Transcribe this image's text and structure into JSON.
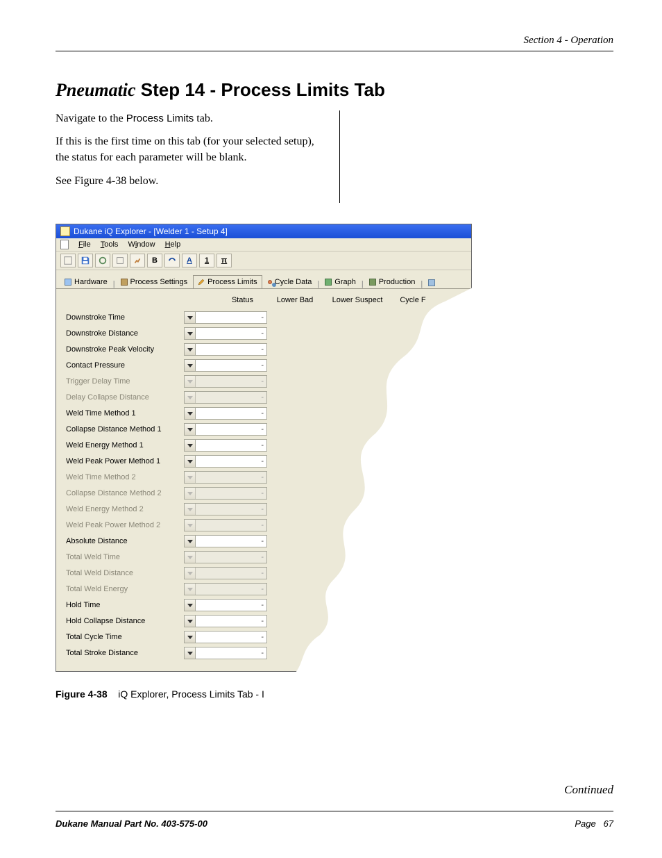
{
  "header": {
    "section": "Section 4 - Operation"
  },
  "title": {
    "prefix": "Pneumatic",
    "rest": " Step 14 - Process Limits Tab"
  },
  "intro": {
    "nav_pre": "Navigate to the ",
    "nav_tab": "Process Limits",
    "nav_post": " tab.",
    "p2": "If this is the first time on this tab (for your selected setup), the status for each parameter will be blank.",
    "p3": "See Figure 4-38 below."
  },
  "window": {
    "title": "Dukane iQ Explorer - [Welder 1 - Setup 4]",
    "menu": {
      "file": "File",
      "tools": "Tools",
      "window": "Window",
      "help": "Help"
    },
    "tabs": {
      "hardware": "Hardware",
      "process_settings": "Process Settings",
      "process_limits": "Process Limits",
      "cycle_data": "Cycle Data",
      "graph": "Graph",
      "production": "Production"
    },
    "columns": {
      "status": "Status",
      "lower_bad": "Lower Bad",
      "lower_suspect": "Lower Suspect",
      "cycle": "Cycle F"
    },
    "rows": [
      {
        "label": "Downstroke Time",
        "enabled": true
      },
      {
        "label": "Downstroke Distance",
        "enabled": true
      },
      {
        "label": "Downstroke Peak Velocity",
        "enabled": true
      },
      {
        "label": "Contact Pressure",
        "enabled": true
      },
      {
        "label": "Trigger Delay Time",
        "enabled": false
      },
      {
        "label": "Delay Collapse Distance",
        "enabled": false
      },
      {
        "label": "Weld Time Method 1",
        "enabled": true
      },
      {
        "label": "Collapse Distance Method 1",
        "enabled": true
      },
      {
        "label": "Weld Energy Method 1",
        "enabled": true
      },
      {
        "label": "Weld Peak Power Method 1",
        "enabled": true
      },
      {
        "label": "Weld Time Method 2",
        "enabled": false
      },
      {
        "label": "Collapse Distance Method 2",
        "enabled": false
      },
      {
        "label": "Weld Energy Method 2",
        "enabled": false
      },
      {
        "label": "Weld Peak Power Method 2",
        "enabled": false
      },
      {
        "label": "Absolute Distance",
        "enabled": true
      },
      {
        "label": "Total Weld Time",
        "enabled": false
      },
      {
        "label": "Total Weld Distance",
        "enabled": false
      },
      {
        "label": "Total Weld Energy",
        "enabled": false
      },
      {
        "label": "Hold Time",
        "enabled": true
      },
      {
        "label": "Hold Collapse Distance",
        "enabled": true
      },
      {
        "label": "Total Cycle Time",
        "enabled": true
      },
      {
        "label": "Total Stroke Distance",
        "enabled": true
      }
    ],
    "status_placeholder": "-",
    "colors": {
      "titlebar_start": "#3a6ef0",
      "titlebar_end": "#1b4fd6",
      "panel_bg": "#ece9d8",
      "cell_bg": "#ffffff",
      "cell_border": "#a8a89a",
      "disabled_text": "#8a8778"
    }
  },
  "figure": {
    "num": "Figure 4-38",
    "caption": "iQ Explorer, Process Limits Tab - I"
  },
  "continued": "Continued",
  "footer": {
    "left": "Dukane Manual Part No. 403-575-00",
    "right_label": "Page",
    "right_num": "67"
  }
}
